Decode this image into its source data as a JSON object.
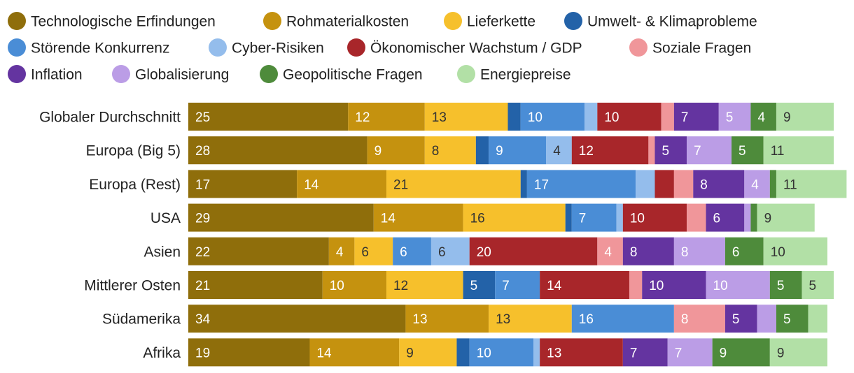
{
  "chart_data": {
    "type": "bar",
    "orientation": "horizontal",
    "stacked": true,
    "title": "",
    "xlabel": "",
    "ylabel": "",
    "legend_position": "top",
    "grid": false,
    "categories": [
      "Globaler Durchschnitt",
      "Europa (Big 5)",
      "Europa (Rest)",
      "USA",
      "Asien",
      "Mittlerer Osten",
      "Südamerika",
      "Afrika"
    ],
    "series": [
      {
        "name": "Technologische Erfindungen",
        "color": "#8f6e0b",
        "label_color": "#ffffff",
        "values": [
          25,
          28,
          17,
          29,
          22,
          21,
          34,
          19
        ]
      },
      {
        "name": "Rohmaterialkosten",
        "color": "#c5920f",
        "label_color": "#ffffff",
        "values": [
          12,
          9,
          14,
          14,
          4,
          10,
          13,
          14
        ]
      },
      {
        "name": "Lieferkette",
        "color": "#f6c02c",
        "label_color": "#333333",
        "values": [
          13,
          8,
          21,
          16,
          6,
          12,
          13,
          9
        ]
      },
      {
        "name": "Umwelt- & Klimaprobleme",
        "color": "#2362a8",
        "label_color": "#ffffff",
        "values": [
          2,
          2,
          1,
          1,
          0,
          5,
          0,
          2
        ]
      },
      {
        "name": "Störende Konkurrenz",
        "color": "#4a8dd6",
        "label_color": "#ffffff",
        "values": [
          10,
          9,
          17,
          7,
          6,
          7,
          16,
          10
        ]
      },
      {
        "name": "Cyber-Risiken",
        "color": "#94bdec",
        "label_color": "#333333",
        "values": [
          2,
          4,
          3,
          1,
          6,
          0,
          0,
          1
        ]
      },
      {
        "name": "Ökonomischer Wachstum / GDP",
        "color": "#a8262a",
        "label_color": "#ffffff",
        "values": [
          10,
          12,
          3,
          10,
          20,
          14,
          0,
          13
        ]
      },
      {
        "name": "Soziale Fragen",
        "color": "#f0969a",
        "label_color": "#ffffff",
        "values": [
          2,
          1,
          3,
          3,
          4,
          2,
          8,
          0
        ]
      },
      {
        "name": "Inflation",
        "color": "#6434a0",
        "label_color": "#ffffff",
        "values": [
          7,
          5,
          8,
          6,
          8,
          10,
          5,
          7
        ]
      },
      {
        "name": "Globalisierung",
        "color": "#bb9de6",
        "label_color": "#ffffff",
        "values": [
          5,
          7,
          4,
          1,
          8,
          10,
          3,
          7
        ]
      },
      {
        "name": "Geopolitische Fragen",
        "color": "#4e8b3b",
        "label_color": "#ffffff",
        "values": [
          4,
          5,
          1,
          1,
          6,
          5,
          5,
          9
        ]
      },
      {
        "name": "Energiepreise",
        "color": "#b2e0a6",
        "label_color": "#333333",
        "values": [
          9,
          11,
          11,
          9,
          10,
          5,
          3,
          9
        ]
      }
    ],
    "min_label_value": 4,
    "xlim": [
      0,
      101
    ]
  }
}
